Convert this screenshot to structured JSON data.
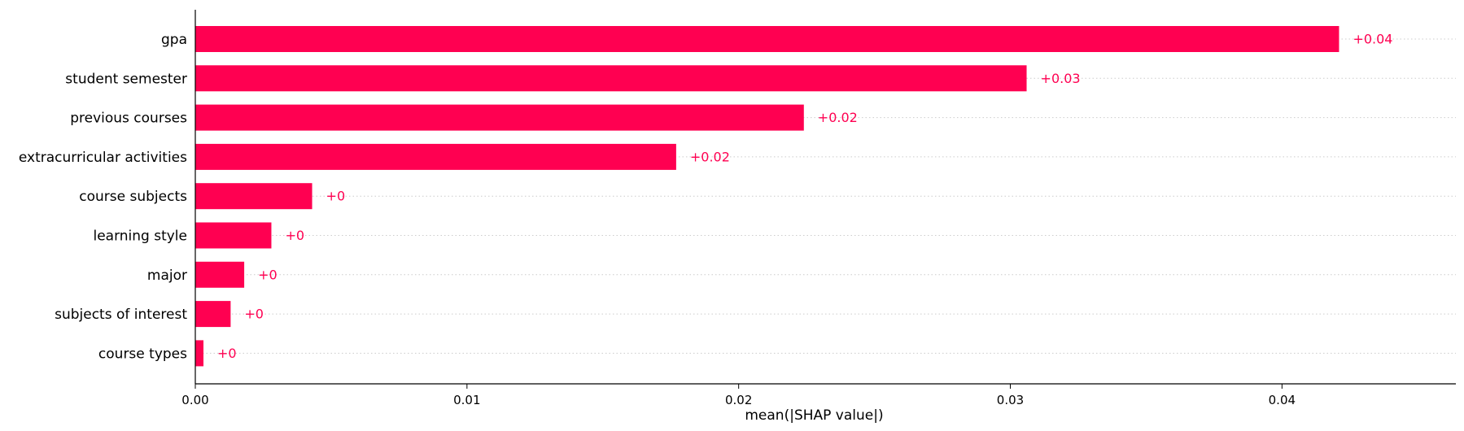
{
  "chart_data": {
    "type": "bar",
    "orientation": "horizontal",
    "categories": [
      "gpa",
      "student semester",
      "previous courses",
      "extracurricular activities",
      "course subjects",
      "learning style",
      "major",
      "subjects of interest",
      "course types"
    ],
    "values": [
      0.0421,
      0.0306,
      0.0224,
      0.0177,
      0.0043,
      0.0028,
      0.0018,
      0.0013,
      0.0003
    ],
    "data_labels": [
      "+0.04",
      "+0.03",
      "+0.02",
      "+0.02",
      "+0",
      "+0",
      "+0",
      "+0",
      "+0"
    ],
    "xlabel": "mean(|SHAP value|)",
    "ylabel": "",
    "xlim": [
      0,
      0.0464
    ],
    "xticks": [
      0.0,
      0.01,
      0.02,
      0.03,
      0.04
    ],
    "xtick_labels": [
      "0.00",
      "0.01",
      "0.02",
      "0.03",
      "0.04"
    ],
    "grid": "horizontal dotted lines per row",
    "colors": {
      "bar": "#ff0051",
      "label": "#ff0051"
    }
  }
}
